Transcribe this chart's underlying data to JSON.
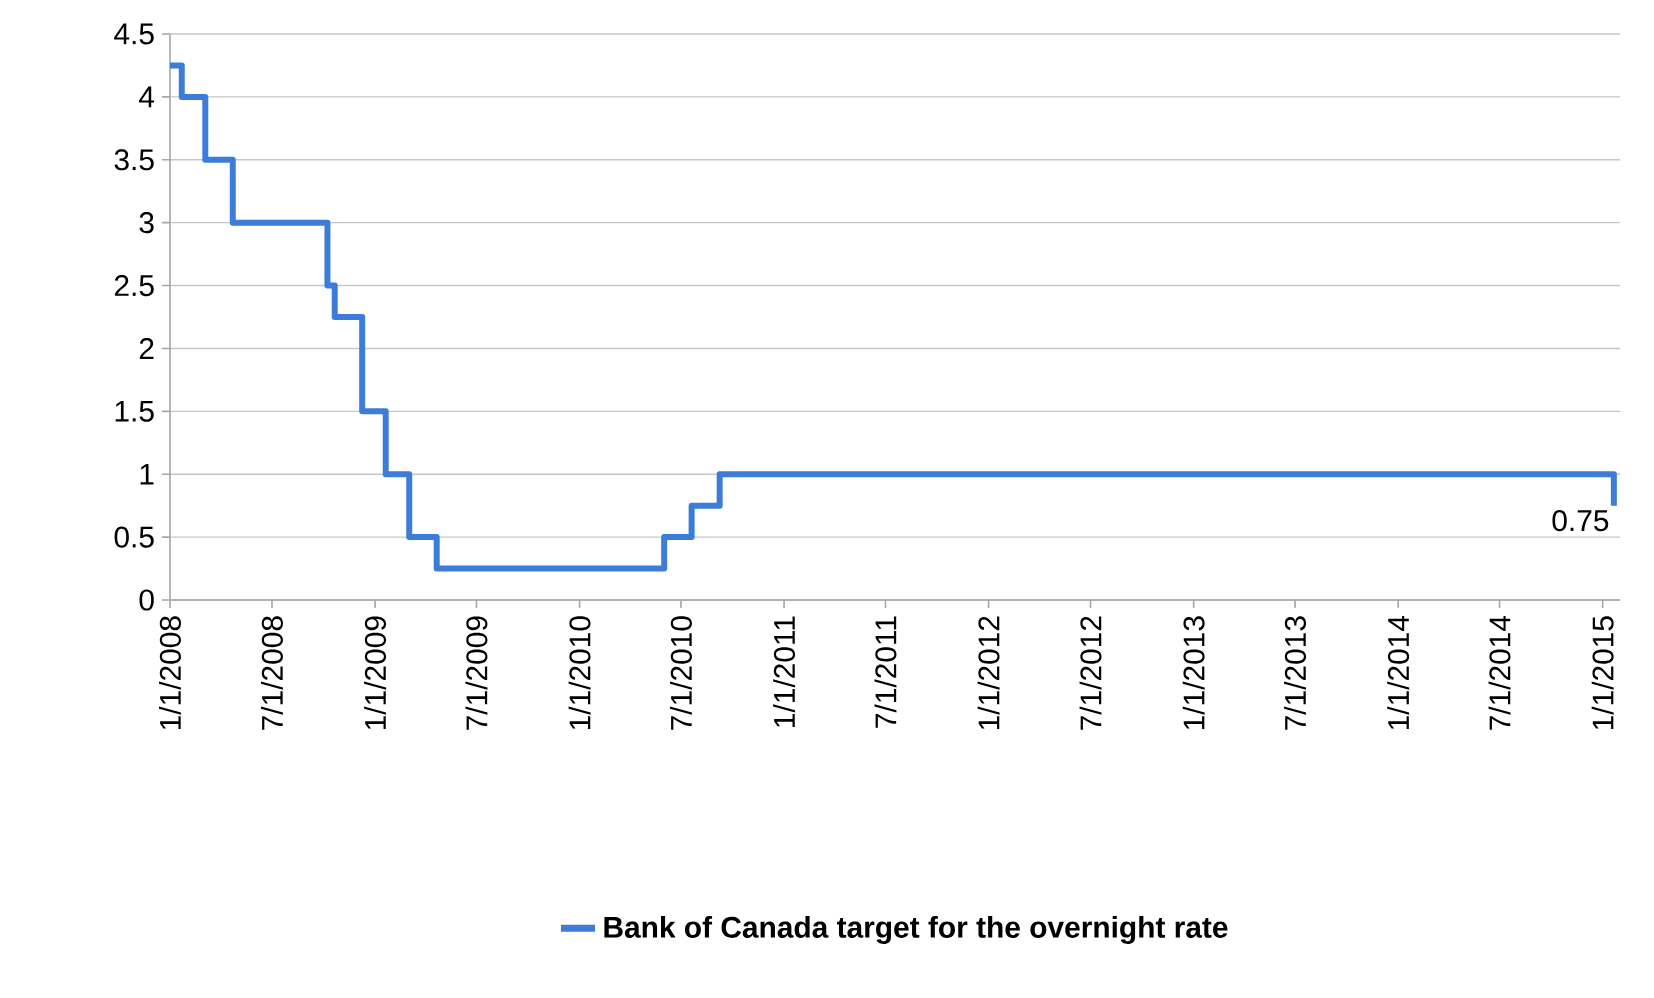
{
  "chart_data": {
    "type": "step",
    "x": [
      "2008-01-01",
      "2008-01-22",
      "2008-03-04",
      "2008-04-22",
      "2008-10-08",
      "2008-10-21",
      "2008-12-09",
      "2009-01-20",
      "2009-03-03",
      "2009-04-21",
      "2010-06-01",
      "2010-07-20",
      "2010-09-08",
      "2015-01-21"
    ],
    "series": [
      {
        "name": "Bank of Canada target for the overnight rate",
        "color": "#3b7dd8",
        "values": [
          4.25,
          4.0,
          3.5,
          3.0,
          2.5,
          2.25,
          1.5,
          1.0,
          0.5,
          0.25,
          0.5,
          0.75,
          1.0,
          0.75
        ]
      }
    ],
    "xlim": [
      "2008-01-01",
      "2015-02-01"
    ],
    "xticks": [
      {
        "value": "2008-01-01",
        "label": "1/1/2008"
      },
      {
        "value": "2008-07-01",
        "label": "7/1/2008"
      },
      {
        "value": "2009-01-01",
        "label": "1/1/2009"
      },
      {
        "value": "2009-07-01",
        "label": "7/1/2009"
      },
      {
        "value": "2010-01-01",
        "label": "1/1/2010"
      },
      {
        "value": "2010-07-01",
        "label": "7/1/2010"
      },
      {
        "value": "2011-01-01",
        "label": "1/1/2011"
      },
      {
        "value": "2011-07-01",
        "label": "7/1/2011"
      },
      {
        "value": "2012-01-01",
        "label": "1/1/2012"
      },
      {
        "value": "2012-07-01",
        "label": "7/1/2012"
      },
      {
        "value": "2013-01-01",
        "label": "1/1/2013"
      },
      {
        "value": "2013-07-01",
        "label": "7/1/2013"
      },
      {
        "value": "2014-01-01",
        "label": "1/1/2014"
      },
      {
        "value": "2014-07-01",
        "label": "7/1/2014"
      },
      {
        "value": "2015-01-01",
        "label": "1/1/2015"
      }
    ],
    "ylim": [
      0,
      4.5
    ],
    "yticks": [
      0,
      0.5,
      1,
      1.5,
      2,
      2.5,
      3,
      3.5,
      4,
      4.5
    ],
    "annotations": [
      {
        "text": "0.75",
        "x": "2015-01-21",
        "y": 0.75
      }
    ],
    "grid": "y",
    "legend": "bottom"
  }
}
